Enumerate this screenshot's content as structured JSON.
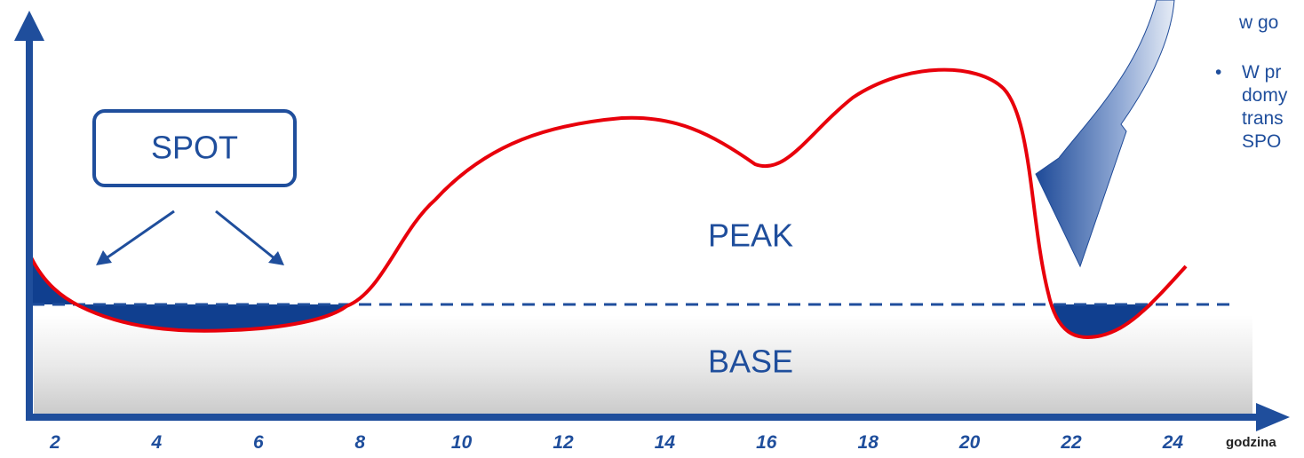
{
  "axis": {
    "x_labels": [
      "2",
      "4",
      "6",
      "8",
      "10",
      "12",
      "14",
      "16",
      "18",
      "20",
      "22",
      "24"
    ],
    "x_title": "godzina"
  },
  "labels": {
    "spot": "SPOT",
    "peak": "PEAK",
    "base": "BASE"
  },
  "side_text": {
    "top": "w go",
    "bullet": "•",
    "lines": [
      "W pr",
      "domy",
      "trans",
      "SPO"
    ]
  }
}
